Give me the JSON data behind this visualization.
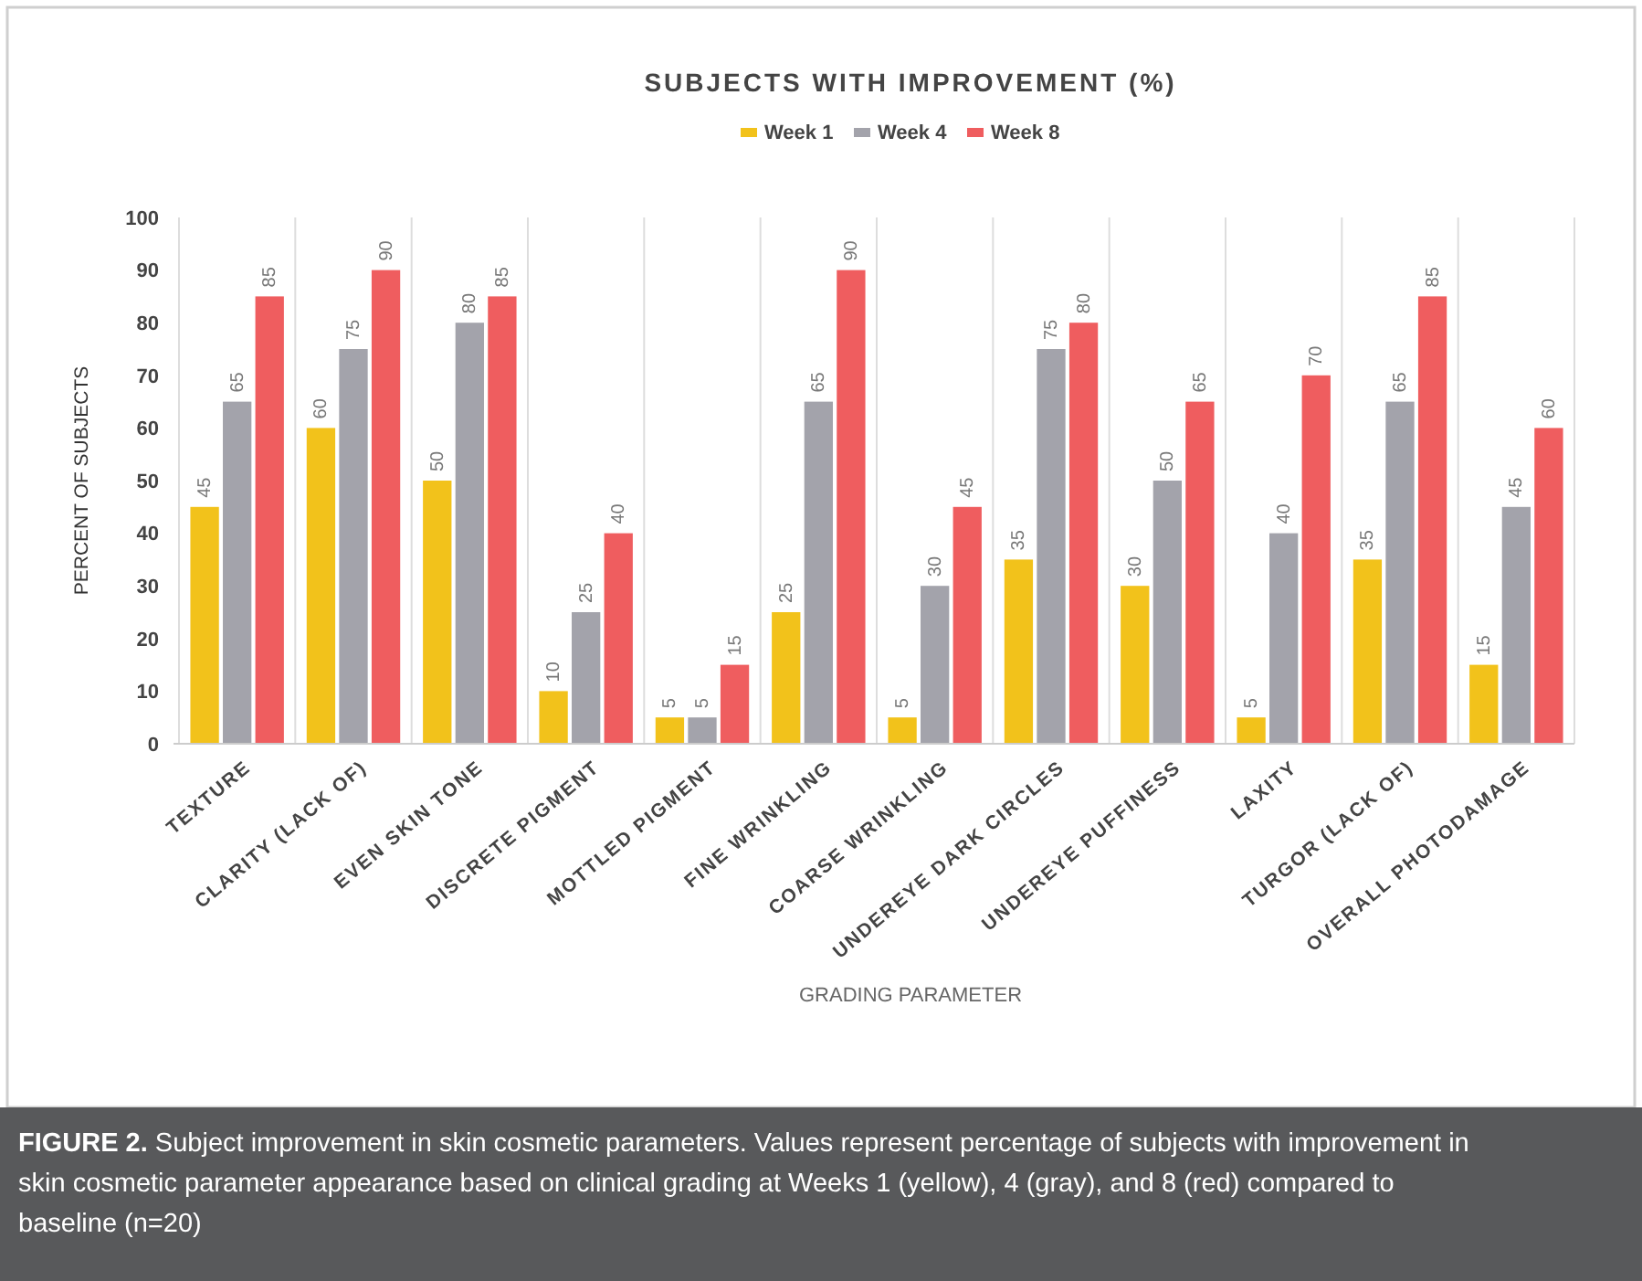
{
  "chart_data": {
    "type": "bar",
    "title": "SUBJECTS WITH IMPROVEMENT (%)",
    "xlabel": "GRADING PARAMETER",
    "ylabel": "PERCENT OF SUBJECTS",
    "categories": [
      "TEXTURE",
      "CLARITY (LACK OF)",
      "EVEN SKIN TONE",
      "DISCRETE PIGMENT",
      "MOTTLED PIGMENT",
      "FINE WRINKLING",
      "COARSE WRINKLING",
      "UNDEREYE DARK CIRCLES",
      "UNDEREYE PUFFINESS",
      "LAXITY",
      "TURGOR (LACK OF)",
      "OVERALL PHOTODAMAGE"
    ],
    "series": [
      {
        "name": "Week 1",
        "color": "#f2c21b",
        "values": [
          45,
          60,
          50,
          10,
          5,
          25,
          5,
          35,
          30,
          5,
          35,
          15
        ]
      },
      {
        "name": "Week 4",
        "color": "#a3a3ab",
        "values": [
          65,
          75,
          80,
          25,
          5,
          65,
          30,
          75,
          50,
          40,
          65,
          45
        ]
      },
      {
        "name": "Week 8",
        "color": "#ef5d5f",
        "values": [
          85,
          90,
          85,
          40,
          15,
          90,
          45,
          80,
          65,
          70,
          85,
          60
        ]
      }
    ],
    "ylim": [
      0,
      100
    ],
    "yticks": [
      0,
      10,
      20,
      30,
      40,
      50,
      60,
      70,
      80,
      90,
      100
    ],
    "grid": "x",
    "legend": "top",
    "data_labels": true,
    "annotations": [
      "FIGURE 2. Subject improvement in skin cosmetic parameters. Values represent percentage of subjects with improvement in skin cosmetic parameter appearance based on clinical grading at Weeks 1 (yellow), 4 (gray), and 8 (red) compared to baseline (n=20)"
    ]
  }
}
